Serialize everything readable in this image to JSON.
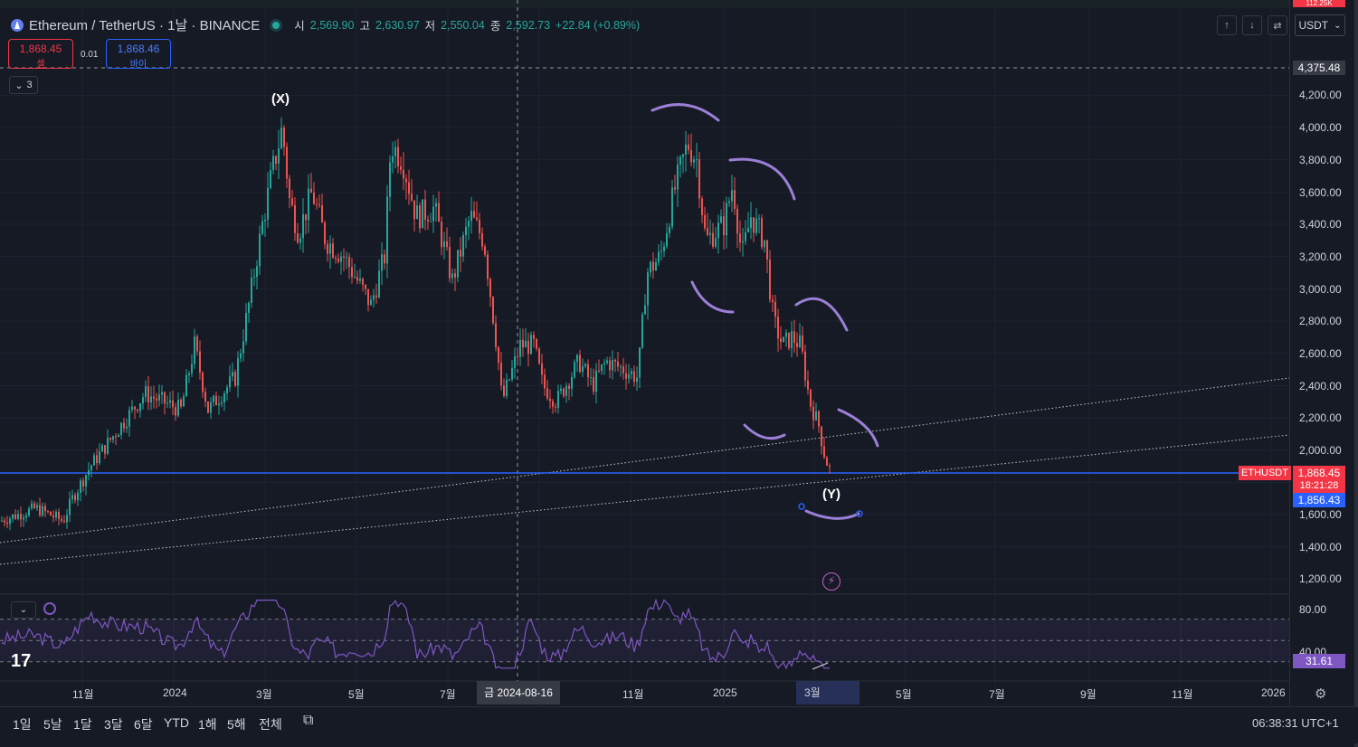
{
  "header": {
    "symbol": "Ethereum / TetherUS · 1날 · BINANCE",
    "ohlc": [
      {
        "key": "시",
        "value": "2,569.90"
      },
      {
        "key": "고",
        "value": "2,630.97"
      },
      {
        "key": "저",
        "value": "2,550.04"
      },
      {
        "key": "종",
        "value": "2,592.73"
      }
    ],
    "change": "+22.84 (+0.89%)",
    "top_badge": "112.25K"
  },
  "trade": {
    "sell_price": "1,868.45",
    "sell_label": "셀",
    "spread": "0.01",
    "buy_price": "1,868.46",
    "buy_label": "바이"
  },
  "indicators_count": "3",
  "toolbar_right": {
    "currency": "USDT",
    "up_icon": "arrow-up-icon",
    "down_icon": "arrow-down-icon",
    "compare_icon": "compare-icon"
  },
  "price_axis": {
    "ticks": [
      "4,200.00",
      "4,000.00",
      "3,800.00",
      "3,600.00",
      "3,400.00",
      "3,200.00",
      "3,000.00",
      "2,800.00",
      "2,600.00",
      "2,400.00",
      "2,200.00",
      "2,000.00",
      "1,600.00",
      "1,400.00",
      "1,200.00"
    ],
    "crosshair_price": "4,375.48",
    "symbol_tag": "ETHUSDT",
    "last_price": "1,868.45",
    "countdown": "18:21:28",
    "line_price": "1,856.43"
  },
  "rsi_axis": {
    "ticks": [
      "80.00",
      "40.00"
    ],
    "value": "31.61"
  },
  "time_axis": {
    "labels": [
      "11월",
      "2024",
      "3월",
      "5월",
      "7월",
      "11월",
      "2025",
      "5월",
      "7월",
      "9월",
      "11월",
      "2026"
    ],
    "crosshair_date": "금 2024-08-16",
    "highlight_month": "3월"
  },
  "wave_labels": {
    "x": "(X)",
    "y": "(Y)"
  },
  "range_buttons": [
    "1일",
    "5날",
    "1달",
    "3달",
    "6달",
    "YTD",
    "1해",
    "5해",
    "전체"
  ],
  "clock": "06:38:31 UTC+1",
  "logo_text": "17",
  "colors": {
    "up": "#26a69a",
    "down": "#ef5350",
    "accent": "#2962ff",
    "rsi": "#7e57c2",
    "drawing": "#9b7fd6"
  },
  "chart_data": {
    "type": "candlestick",
    "symbol": "ETHUSDT",
    "ylim": [
      1100,
      4400
    ],
    "x": [
      "2023-10",
      "2023-11",
      "2023-12",
      "2024-01",
      "2024-02",
      "2024-03",
      "2024-04",
      "2024-05",
      "2024-06",
      "2024-07",
      "2024-08",
      "2024-09",
      "2024-10",
      "2024-11",
      "2024-12",
      "2025-01",
      "2025-02",
      "2025-03"
    ],
    "close_approx": [
      1560,
      1900,
      2280,
      2300,
      3350,
      3600,
      3050,
      3750,
      3450,
      3240,
      2500,
      2600,
      2500,
      3650,
      3400,
      3200,
      2250,
      1868
    ],
    "rsi_value": 31.61,
    "rsi_ylim": [
      20,
      90
    ]
  }
}
